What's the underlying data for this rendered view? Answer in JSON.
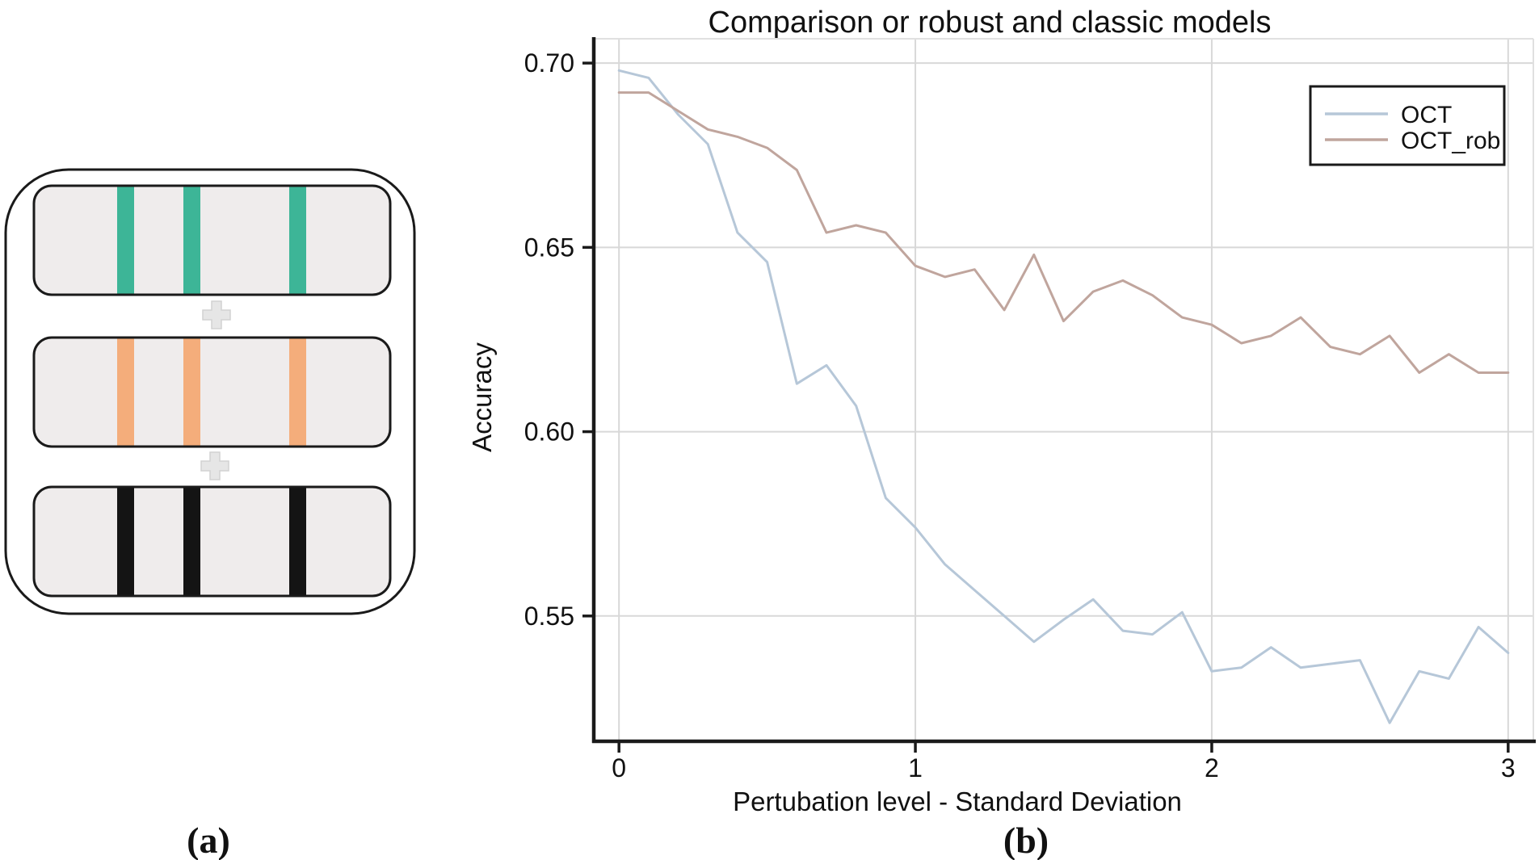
{
  "figure": {
    "panel_a_label": "(a)",
    "panel_b_label": "(b)"
  },
  "panel_a": {
    "description": "three stacked band strips combined with plus signs",
    "plus_sign": "+",
    "strip_fill": "#efecec",
    "border_color": "#1a1a1a",
    "strips": [
      {
        "name": "teal-band-strip",
        "bar_color": "#3db597"
      },
      {
        "name": "orange-band-strip",
        "bar_color": "#f4ad7b"
      },
      {
        "name": "black-band-strip",
        "bar_color": "#141414"
      }
    ]
  },
  "chart_data": {
    "type": "line",
    "title": "Comparison or robust and classic models",
    "xlabel": "Pertubation level - Standard Deviation",
    "ylabel": "Accuracy",
    "grid": true,
    "legend_position": "upper right",
    "xlim": [
      -0.085,
      3.085
    ],
    "ylim": [
      0.516,
      0.7066
    ],
    "xticks": [
      0,
      1,
      2,
      3
    ],
    "xtick_labels": [
      "0",
      "1",
      "2",
      "3"
    ],
    "yticks": [
      0.7,
      0.65,
      0.6,
      0.55
    ],
    "ytick_labels": [
      "0.70",
      "0.65",
      "0.60",
      "0.55"
    ],
    "grid_color": "#d8d8d8",
    "x": [
      0,
      0.1,
      0.2,
      0.3,
      0.4,
      0.5,
      0.6,
      0.7,
      0.8,
      0.9,
      1,
      1.1,
      1.2,
      1.3,
      1.4,
      1.5,
      1.6,
      1.7,
      1.8,
      1.9,
      2,
      2.1,
      2.2,
      2.3,
      2.4,
      2.5,
      2.6,
      2.7,
      2.8,
      2.9,
      3
    ],
    "series": [
      {
        "name": "OCT",
        "color": "#b6c7d8",
        "values": [
          0.698,
          0.696,
          0.686,
          0.678,
          0.654,
          0.646,
          0.613,
          0.618,
          0.607,
          0.582,
          0.574,
          0.564,
          0.557,
          0.55,
          0.543,
          0.549,
          0.5545,
          0.546,
          0.545,
          0.551,
          0.535,
          0.536,
          0.5415,
          0.536,
          0.537,
          0.538,
          0.521,
          0.535,
          0.533,
          0.547,
          0.54
        ]
      },
      {
        "name": "OCT_rob",
        "color": "#c0a59d",
        "values": [
          0.692,
          0.692,
          0.687,
          0.682,
          0.68,
          0.677,
          0.671,
          0.654,
          0.656,
          0.654,
          0.645,
          0.642,
          0.644,
          0.633,
          0.648,
          0.63,
          0.638,
          0.641,
          0.637,
          0.631,
          0.629,
          0.624,
          0.626,
          0.631,
          0.623,
          0.621,
          0.626,
          0.616,
          0.621,
          0.616,
          0.616
        ]
      }
    ]
  }
}
